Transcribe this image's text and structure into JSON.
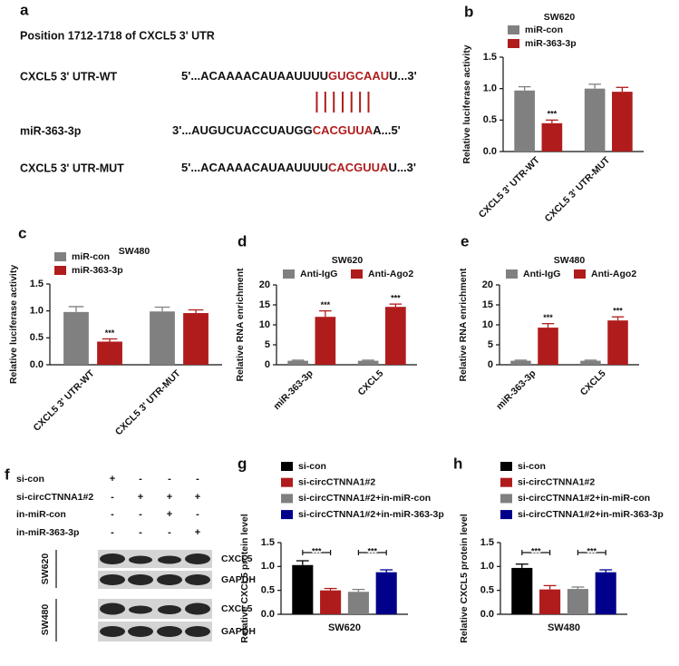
{
  "panel_a": {
    "letter": "a",
    "title": "Position 1712-1718 of CXCL5 3' UTR",
    "highlight_color": "#b01c1c",
    "rows": [
      {
        "label": "CXCL5 3' UTR-WT",
        "sequence": [
          "5'...ACAAAACAUAAUUUU",
          "GUGCAAU",
          "U...3'"
        ]
      },
      {
        "label": "miR-363-3p",
        "sequence": [
          "3'...AUGUCUACCUAUGG",
          "CACGUUA",
          "A...5'"
        ]
      },
      {
        "label": "CXCL5 3' UTR-MUT",
        "sequence": [
          "5'...ACAAAACAUAAUUUU",
          "CACGUUA",
          "U...3'"
        ]
      }
    ]
  },
  "panel_f": {
    "letter": "f",
    "treatments": [
      {
        "label": "si-con",
        "marks": [
          "+",
          "-",
          "-",
          "-"
        ]
      },
      {
        "label": "si-circCTNNA1#2",
        "marks": [
          "-",
          "+",
          "+",
          "+"
        ]
      },
      {
        "label": "in-miR-con",
        "marks": [
          "-",
          "-",
          "+",
          "-"
        ]
      },
      {
        "label": "in-miR-363-3p",
        "marks": [
          "-",
          "-",
          "-",
          "+"
        ]
      }
    ],
    "blots": [
      {
        "cell_line": "SW620",
        "bands": [
          "CXCL5",
          "GAPDH"
        ]
      },
      {
        "cell_line": "SW480",
        "bands": [
          "CXCL5",
          "GAPDH"
        ]
      }
    ]
  },
  "chart_data": [
    {
      "panel": "b",
      "type": "bar",
      "title": "SW620",
      "y_label": "Relative luciferase activity",
      "categories": [
        "CXCL5 3' UTR-WT",
        "CXCL5 3' UTR-MUT"
      ],
      "series": [
        {
          "name": "miR-con",
          "color": "#808080",
          "values": [
            0.97,
            1.0
          ],
          "errors": [
            0.06,
            0.07
          ]
        },
        {
          "name": "miR-363-3p",
          "color": "#b01c1c",
          "values": [
            0.45,
            0.95
          ],
          "errors": [
            0.05,
            0.07
          ],
          "value_annotations": [
            "***",
            null
          ]
        }
      ],
      "ylim": [
        0,
        1.5
      ],
      "yticks": [
        {
          "value": 0,
          "label": "0.0"
        },
        {
          "value": 0.5,
          "label": "0.5"
        },
        {
          "value": 1,
          "label": "1.0"
        },
        {
          "value": 1.5,
          "label": "1.5"
        }
      ],
      "legend": "upper left"
    },
    {
      "panel": "c",
      "type": "bar",
      "title": "SW480",
      "y_label": "Relative luciferase activity",
      "categories": [
        "CXCL5 3' UTR-WT",
        "CXCL5 3' UTR-MUT"
      ],
      "series": [
        {
          "name": "miR-con",
          "color": "#808080",
          "values": [
            0.98,
            0.99
          ],
          "errors": [
            0.1,
            0.08
          ]
        },
        {
          "name": "miR-363-3p",
          "color": "#b01c1c",
          "values": [
            0.43,
            0.96
          ],
          "errors": [
            0.05,
            0.06
          ],
          "value_annotations": [
            "***",
            null
          ]
        }
      ],
      "ylim": [
        0,
        1.5
      ],
      "yticks": [
        {
          "value": 0,
          "label": "0.0"
        },
        {
          "value": 0.5,
          "label": "0.5"
        },
        {
          "value": 1,
          "label": "1.0"
        },
        {
          "value": 1.5,
          "label": "1.5"
        }
      ],
      "legend": "upper left"
    },
    {
      "panel": "d",
      "type": "bar",
      "title": "SW620",
      "y_label": "Relative RNA enrichment",
      "categories": [
        "miR-363-3p",
        "CXCL5"
      ],
      "series": [
        {
          "name": "Anti-IgG",
          "color": "#808080",
          "values": [
            1,
            1
          ],
          "errors": [
            0.15,
            0.15
          ]
        },
        {
          "name": "Anti-Ago2",
          "color": "#b01c1c",
          "values": [
            12,
            14.5
          ],
          "errors": [
            1.5,
            0.7
          ],
          "value_annotations": [
            "***",
            "***"
          ]
        }
      ],
      "ylim": [
        0,
        20
      ],
      "yticks": [
        0,
        5,
        10,
        15,
        20
      ],
      "legend": "top"
    },
    {
      "panel": "e",
      "type": "bar",
      "title": "SW480",
      "y_label": "Relative RNA enrichment",
      "categories": [
        "miR-363-3p",
        "CXCL5"
      ],
      "series": [
        {
          "name": "Anti-IgG",
          "color": "#808080",
          "values": [
            1,
            1
          ],
          "errors": [
            0.15,
            0.15
          ]
        },
        {
          "name": "Anti-Ago2",
          "color": "#b01c1c",
          "values": [
            9.3,
            11.1
          ],
          "errors": [
            1.0,
            0.9
          ],
          "value_annotations": [
            "***",
            "***"
          ]
        }
      ],
      "ylim": [
        0,
        20
      ],
      "yticks": [
        0,
        5,
        10,
        15,
        20
      ],
      "legend": "top"
    },
    {
      "panel": "g",
      "type": "bar",
      "x_label": "SW620",
      "y_label": "Relative CXCL5 protein level",
      "categories": [
        null
      ],
      "series": [
        {
          "name": "si-con",
          "color": "#000000",
          "values": [
            1.03
          ],
          "errors": [
            0.09
          ]
        },
        {
          "name": "si-circCTNNA1#2",
          "color": "#b01c1c",
          "values": [
            0.5
          ],
          "errors": [
            0.04
          ]
        },
        {
          "name": "si-circCTNNA1#2+in-miR-con",
          "color": "#808080",
          "values": [
            0.47
          ],
          "errors": [
            0.05
          ]
        },
        {
          "name": "si-circCTNNA1#2+in-miR-363-3p",
          "color": "#00008b",
          "values": [
            0.88
          ],
          "errors": [
            0.05
          ]
        }
      ],
      "significance": [
        "***",
        "***"
      ],
      "ylim": [
        0,
        1.5
      ],
      "yticks": [
        {
          "value": 0,
          "label": "0.0"
        },
        {
          "value": 0.5,
          "label": "0.5"
        },
        {
          "value": 1,
          "label": "1.0"
        },
        {
          "value": 1.5,
          "label": "1.5"
        }
      ],
      "legend": "top"
    },
    {
      "panel": "h",
      "type": "bar",
      "x_label": "SW480",
      "y_label": "Relative CXCL5 protein level",
      "categories": [
        null
      ],
      "series": [
        {
          "name": "si-con",
          "color": "#000000",
          "values": [
            0.97
          ],
          "errors": [
            0.08
          ]
        },
        {
          "name": "si-circCTNNA1#2",
          "color": "#b01c1c",
          "values": [
            0.52
          ],
          "errors": [
            0.08
          ]
        },
        {
          "name": "si-circCTNNA1#2+in-miR-con",
          "color": "#808080",
          "values": [
            0.53
          ],
          "errors": [
            0.04
          ]
        },
        {
          "name": "si-circCTNNA1#2+in-miR-363-3p",
          "color": "#00008b",
          "values": [
            0.88
          ],
          "errors": [
            0.05
          ]
        }
      ],
      "significance": [
        "***",
        "***"
      ],
      "ylim": [
        0,
        1.5
      ],
      "yticks": [
        {
          "value": 0,
          "label": "0.0"
        },
        {
          "value": 0.5,
          "label": "0.5"
        },
        {
          "value": 1,
          "label": "1.0"
        },
        {
          "value": 1.5,
          "label": "1.5"
        }
      ],
      "legend": "top"
    }
  ]
}
